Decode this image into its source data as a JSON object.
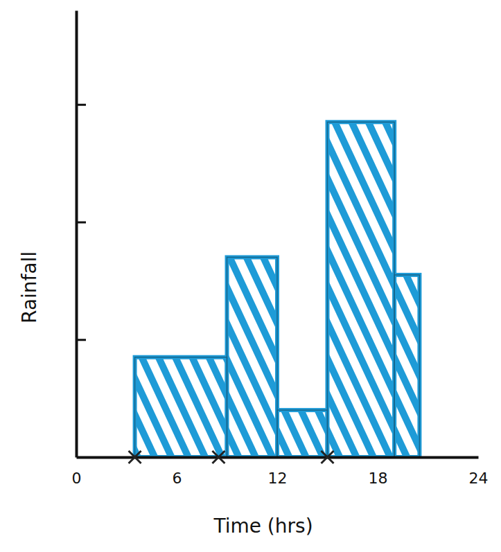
{
  "chart_data": {
    "type": "histogram",
    "x_label": "Time (hrs)",
    "y_label": "Rainfall",
    "bins": [
      3.5,
      9,
      12,
      15,
      19,
      20.5
    ],
    "values": [
      0.85,
      1.7,
      0.4,
      2.85,
      1.55
    ],
    "color": "#1e9bd7",
    "crosses": [
      3.5,
      8.5,
      15
    ],
    "xlim": [
      0,
      24
    ],
    "xticks": [
      0,
      6,
      12,
      18,
      24
    ],
    "ylim": [
      0,
      3.8
    ],
    "yticks": [
      1,
      2,
      3
    ],
    "tick_labels": "x"
  }
}
